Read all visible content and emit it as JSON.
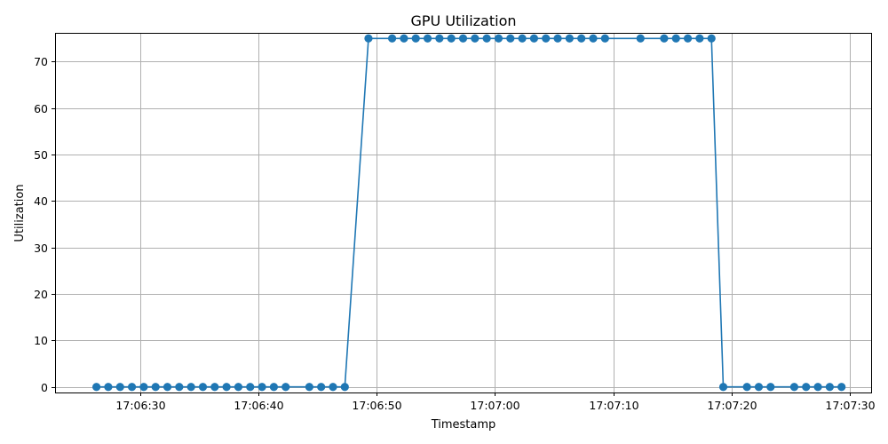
{
  "chart_data": {
    "type": "line",
    "title": "GPU Utilization",
    "xlabel": "Timestamp",
    "ylabel": "Utilization",
    "x_ticks": [
      "17:06:30",
      "17:06:40",
      "17:06:50",
      "17:07:00",
      "17:07:10",
      "17:07:20",
      "17:07:30"
    ],
    "y_ticks": [
      "0",
      "10",
      "20",
      "30",
      "40",
      "50",
      "60",
      "70"
    ],
    "xlim": [
      "17:06:22.8",
      "17:07:31.8"
    ],
    "ylim": [
      -1.2,
      76.2
    ],
    "grid": true,
    "color": "#1f77b4",
    "marker": "circle",
    "series": [
      {
        "x": [
          "17:06:26.3",
          "17:06:27.3",
          "17:06:28.3",
          "17:06:29.3",
          "17:06:30.3",
          "17:06:31.3",
          "17:06:32.3",
          "17:06:33.3",
          "17:06:34.3",
          "17:06:35.3",
          "17:06:36.3",
          "17:06:37.3",
          "17:06:38.3",
          "17:06:39.3",
          "17:06:40.3",
          "17:06:41.3",
          "17:06:42.3",
          "17:06:44.3",
          "17:06:45.3",
          "17:06:46.3",
          "17:06:47.3",
          "17:06:49.3",
          "17:06:51.3",
          "17:06:52.3",
          "17:06:53.3",
          "17:06:54.3",
          "17:06:55.3",
          "17:06:56.3",
          "17:06:57.3",
          "17:06:58.3",
          "17:06:59.3",
          "17:07:00.3",
          "17:07:01.3",
          "17:07:02.3",
          "17:07:03.3",
          "17:07:04.3",
          "17:07:05.3",
          "17:07:06.3",
          "17:07:07.3",
          "17:07:08.3",
          "17:07:09.3",
          "17:07:12.3",
          "17:07:14.3",
          "17:07:15.3",
          "17:07:16.3",
          "17:07:17.3",
          "17:07:18.3",
          "17:07:19.3",
          "17:07:21.3",
          "17:07:22.3",
          "17:07:23.3",
          "17:07:25.3",
          "17:07:26.3",
          "17:07:27.3",
          "17:07:28.3",
          "17:07:29.3"
        ],
        "values": [
          0,
          0,
          0,
          0,
          0,
          0,
          0,
          0,
          0,
          0,
          0,
          0,
          0,
          0,
          0,
          0,
          0,
          0,
          0,
          0,
          0,
          75,
          75,
          75,
          75,
          75,
          75,
          75,
          75,
          75,
          75,
          75,
          75,
          75,
          75,
          75,
          75,
          75,
          75,
          75,
          75,
          75,
          75,
          75,
          75,
          75,
          75,
          0,
          0,
          0,
          0,
          0,
          0,
          0,
          0,
          0
        ]
      }
    ]
  }
}
